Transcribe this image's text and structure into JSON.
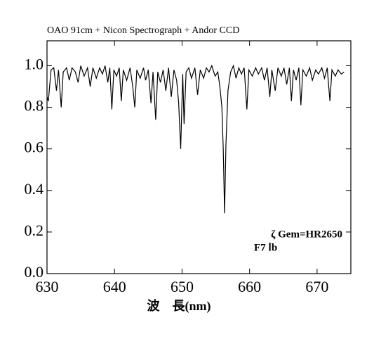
{
  "chart_data": {
    "type": "line",
    "title": "OAO 91cm + Nicon Spectrograph + Andor CCD",
    "x_label": "波　長(nm)",
    "annotations": [
      "ζ Gem=HR2650",
      "F7 Ⅰb"
    ],
    "color": "#000000",
    "xlim": [
      630,
      675
    ],
    "xticks": [
      630,
      640,
      650,
      660,
      670
    ],
    "ylim": [
      0,
      1.12
    ],
    "yticks": [
      {
        "value": 0,
        "label": "0.0"
      },
      0.2,
      0.4,
      0.6,
      0.8,
      {
        "value": 1,
        "label": "1.0"
      }
    ],
    "x": [
      630.0,
      630.2,
      630.6,
      631.0,
      631.4,
      631.7,
      632.1,
      632.4,
      632.9,
      633.3,
      633.7,
      634.2,
      634.6,
      635.0,
      635.5,
      636.0,
      636.4,
      636.8,
      637.3,
      637.8,
      638.2,
      638.6,
      639.0,
      639.3,
      639.6,
      639.9,
      640.3,
      640.7,
      641.0,
      641.3,
      641.8,
      642.3,
      642.7,
      643.0,
      643.3,
      643.8,
      644.3,
      644.6,
      645.0,
      645.4,
      645.7,
      646.1,
      646.4,
      646.8,
      647.2,
      647.6,
      648.0,
      648.4,
      648.8,
      649.2,
      649.5,
      649.8,
      650.1,
      650.3,
      650.6,
      651.0,
      651.4,
      651.9,
      652.3,
      652.7,
      653.2,
      653.6,
      654.0,
      654.4,
      654.9,
      655.3,
      655.6,
      655.9,
      656.1,
      656.3,
      656.5,
      656.8,
      657.2,
      657.6,
      658.0,
      658.4,
      658.8,
      659.2,
      659.6,
      659.9,
      660.4,
      660.9,
      661.3,
      661.8,
      662.2,
      662.6,
      663.0,
      663.3,
      663.8,
      664.2,
      664.7,
      665.1,
      665.5,
      665.9,
      666.2,
      666.5,
      666.9,
      667.3,
      667.6,
      667.9,
      668.4,
      668.9,
      669.3,
      669.8,
      670.2,
      670.7,
      671.1,
      671.5,
      671.9,
      672.2,
      672.7,
      673.1,
      673.6,
      674.0
    ],
    "values": [
      0.85,
      0.83,
      0.98,
      0.99,
      0.88,
      0.98,
      0.8,
      0.97,
      0.99,
      0.93,
      0.99,
      0.97,
      0.92,
      1.0,
      0.95,
      0.99,
      0.9,
      0.99,
      0.94,
      0.99,
      0.96,
      1.0,
      0.92,
      0.99,
      0.79,
      0.98,
      0.95,
      0.99,
      0.83,
      0.98,
      0.93,
      0.99,
      0.9,
      0.8,
      0.98,
      0.94,
      0.99,
      0.93,
      0.98,
      0.82,
      0.97,
      0.74,
      0.97,
      0.92,
      0.98,
      0.88,
      0.99,
      0.85,
      0.98,
      0.93,
      0.82,
      0.6,
      0.96,
      0.72,
      0.97,
      0.99,
      0.94,
      0.99,
      0.86,
      0.98,
      0.94,
      0.99,
      0.97,
      1.0,
      0.95,
      0.97,
      0.9,
      0.8,
      0.6,
      0.29,
      0.62,
      0.88,
      0.97,
      1.0,
      0.94,
      0.99,
      0.96,
      0.99,
      0.79,
      0.98,
      0.95,
      0.99,
      0.96,
      0.99,
      0.93,
      0.99,
      0.85,
      0.98,
      0.88,
      0.99,
      0.95,
      0.99,
      0.91,
      0.99,
      0.83,
      0.98,
      0.93,
      0.99,
      0.81,
      0.98,
      0.95,
      0.99,
      0.93,
      0.98,
      0.96,
      0.99,
      0.94,
      0.99,
      0.83,
      0.98,
      0.95,
      0.98,
      0.96,
      0.97
    ]
  }
}
